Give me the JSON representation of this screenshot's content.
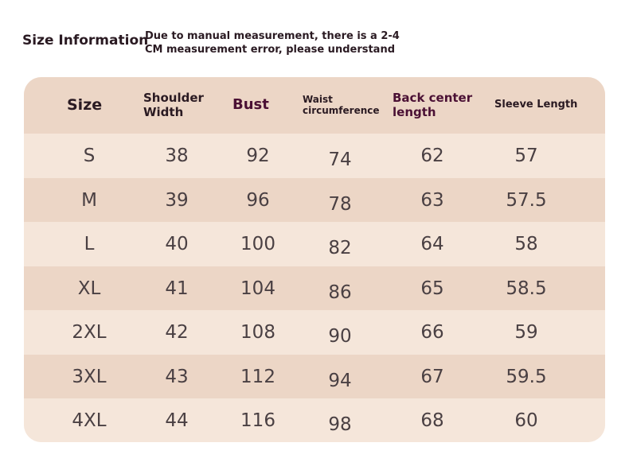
{
  "header": {
    "title": "Size Information",
    "note_line1": "Due to manual measurement, there is a 2-4",
    "note_line2": "CM measurement error, please understand"
  },
  "table": {
    "columns": [
      {
        "lines": [
          "Size"
        ]
      },
      {
        "lines": [
          "Shoulder",
          "Width"
        ]
      },
      {
        "lines": [
          "Bust"
        ]
      },
      {
        "lines": [
          "Waist",
          "circumference"
        ]
      },
      {
        "lines": [
          "Back center",
          "length"
        ]
      },
      {
        "lines": [
          "Sleeve Length"
        ]
      }
    ],
    "rows": [
      [
        "S",
        "38",
        "92",
        "74",
        "62",
        "57"
      ],
      [
        "M",
        "39",
        "96",
        "78",
        "63",
        "57.5"
      ],
      [
        "L",
        "40",
        "100",
        "82",
        "64",
        "58"
      ],
      [
        "XL",
        "41",
        "104",
        "86",
        "65",
        "58.5"
      ],
      [
        "2XL",
        "42",
        "108",
        "90",
        "66",
        "59"
      ],
      [
        "3XL",
        "43",
        "112",
        "94",
        "67",
        "59.5"
      ],
      [
        "4XL",
        "44",
        "116",
        "98",
        "68",
        "60"
      ]
    ]
  },
  "colors": {
    "background": "#ffffff",
    "header_row": "#ecd6c6",
    "light_row": "#f5e6da",
    "dark_row": "#ecd6c6",
    "title_text": "#2a1a22",
    "value_text": "#4a4043"
  }
}
